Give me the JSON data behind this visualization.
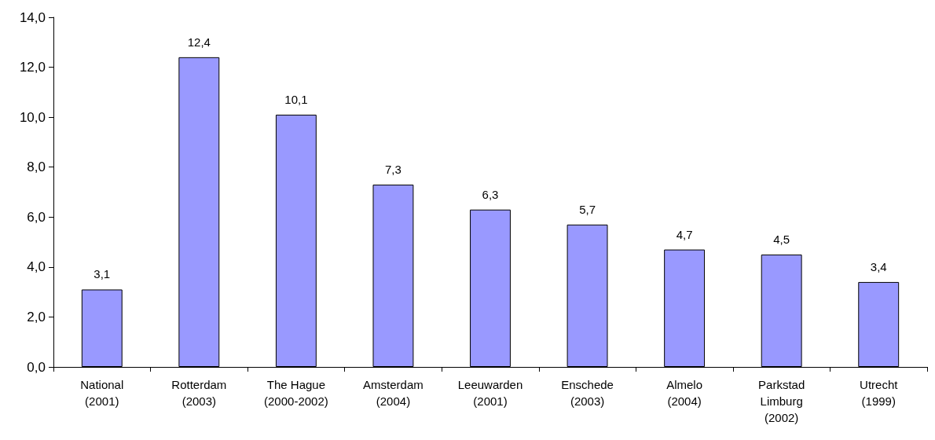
{
  "chart_data": {
    "type": "bar",
    "categories": [
      "National\n(2001)",
      "Rotterdam\n(2003)",
      "The Hague\n(2000-2002)",
      "Amsterdam\n(2004)",
      "Leeuwarden\n(2001)",
      "Enschede\n(2003)",
      "Almelo\n(2004)",
      "Parkstad\nLimburg\n(2002)",
      "Utrecht\n(1999)"
    ],
    "values": [
      3.1,
      12.4,
      10.1,
      7.3,
      6.3,
      5.7,
      4.7,
      4.5,
      3.4
    ],
    "value_labels": [
      "3,1",
      "12,4",
      "10,1",
      "7,3",
      "6,3",
      "5,7",
      "4,7",
      "4,5",
      "3,4"
    ],
    "color": "#9999ff",
    "ylim": [
      0,
      14
    ],
    "yticks": [
      {
        "value": 0,
        "label": "0,0"
      },
      {
        "value": 2,
        "label": "2,0"
      },
      {
        "value": 4,
        "label": "4,0"
      },
      {
        "value": 6,
        "label": "6,0"
      },
      {
        "value": 8,
        "label": "8,0"
      },
      {
        "value": 10,
        "label": "10,0"
      },
      {
        "value": 12,
        "label": "12,0"
      },
      {
        "value": 14,
        "label": "14,0"
      }
    ],
    "grid": false
  }
}
